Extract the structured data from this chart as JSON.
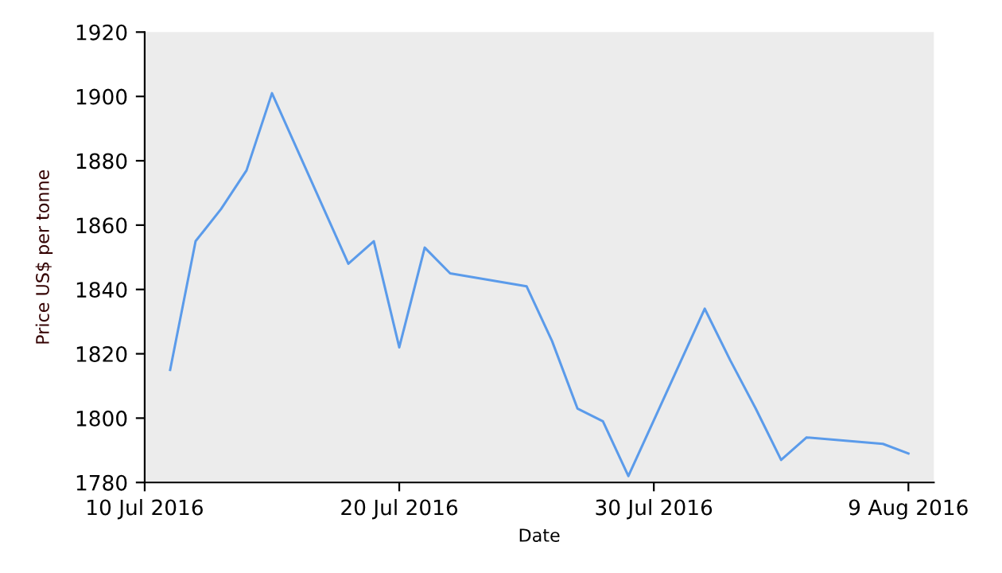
{
  "chart_data": {
    "type": "line",
    "xlabel": "Date",
    "ylabel": "Price US$ per tonne",
    "x": [
      "2016-07-11",
      "2016-07-12",
      "2016-07-13",
      "2016-07-14",
      "2016-07-15",
      "2016-07-18",
      "2016-07-19",
      "2016-07-20",
      "2016-07-21",
      "2016-07-22",
      "2016-07-25",
      "2016-07-26",
      "2016-07-27",
      "2016-07-28",
      "2016-07-29",
      "2016-08-01",
      "2016-08-02",
      "2016-08-03",
      "2016-08-04",
      "2016-08-05",
      "2016-08-08",
      "2016-08-09"
    ],
    "series": [
      {
        "color": "#5b9bea",
        "values": [
          1815,
          1855,
          1865,
          1877,
          1901,
          1848,
          1855,
          1822,
          1853,
          1845,
          1841,
          1824,
          1803,
          1799,
          1782,
          1834,
          1818,
          1803,
          1787,
          1794,
          1792,
          1789
        ]
      }
    ],
    "xlim": [
      "2016-07-10",
      "2016-08-10"
    ],
    "xticks": [
      {
        "value": "2016-07-10",
        "label": "10 Jul 2016"
      },
      {
        "value": "2016-07-20",
        "label": "20 Jul 2016"
      },
      {
        "value": "2016-07-30",
        "label": "30 Jul 2016"
      },
      {
        "value": "2016-08-09",
        "label": "9 Aug 2016"
      }
    ],
    "ylim": [
      1780,
      1920
    ],
    "yticks": [
      1780,
      1800,
      1820,
      1840,
      1860,
      1880,
      1900,
      1920
    ],
    "grid": false,
    "legend": false,
    "marker": "none",
    "line_style": "solid"
  }
}
